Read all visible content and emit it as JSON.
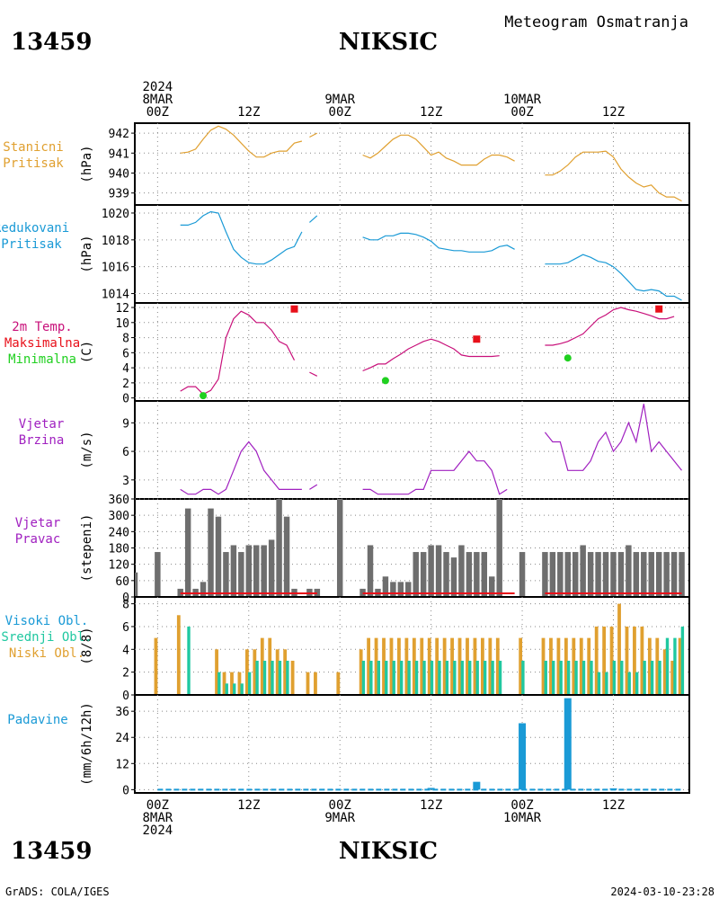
{
  "header": {
    "station_id": "13459",
    "station_name": "NIKSIC",
    "title": "Meteogram Osmatranja"
  },
  "footer": {
    "station_id": "13459",
    "station_name": "NIKSIC",
    "credit": "GrADS: COLA/IGES",
    "timestamp": "2024-03-10-23:28"
  },
  "time_axis": {
    "top": [
      {
        "hour": 0,
        "lines": [
          "2024",
          "8MAR",
          "00Z"
        ]
      },
      {
        "hour": 12,
        "lines": [
          "12Z"
        ]
      },
      {
        "hour": 24,
        "lines": [
          "9MAR",
          "00Z"
        ]
      },
      {
        "hour": 36,
        "lines": [
          "12Z"
        ]
      },
      {
        "hour": 48,
        "lines": [
          "10MAR",
          "00Z"
        ]
      },
      {
        "hour": 60,
        "lines": [
          "12Z"
        ]
      }
    ],
    "bottom": [
      {
        "hour": 0,
        "lines": [
          "00Z",
          "8MAR",
          "2024"
        ]
      },
      {
        "hour": 12,
        "lines": [
          "12Z"
        ]
      },
      {
        "hour": 24,
        "lines": [
          "00Z",
          "9MAR"
        ]
      },
      {
        "hour": 36,
        "lines": [
          "12Z"
        ]
      },
      {
        "hour": 48,
        "lines": [
          "00Z",
          "10MAR"
        ]
      },
      {
        "hour": 60,
        "lines": [
          "12Z"
        ]
      }
    ],
    "range_hours": [
      -3,
      70
    ]
  },
  "colors": {
    "pressure": "#e0a030",
    "reduced_pressure": "#1a9ad6",
    "temperature": "#c8107a",
    "tmax": "#e8101a",
    "tmin": "#20d020",
    "wind": "#a020c0",
    "direction": "#6e6e6e",
    "clouds_high": "#1a9ad6",
    "clouds_mid": "#20c8a0",
    "clouds_low": "#e0a030",
    "precip": "#1a9ad6"
  },
  "chart_data": [
    {
      "type": "line",
      "panel": "station_pressure",
      "labels": [
        "Stanicni",
        "Pritisak"
      ],
      "ylabel": "(hPa)",
      "ylim": [
        938.4,
        942.5
      ],
      "yticks": [
        939,
        940,
        941,
        942
      ],
      "series": [
        {
          "x": [
            3,
            4,
            5,
            6,
            7,
            8,
            9,
            10,
            11,
            12,
            13,
            14,
            15,
            16,
            17,
            18,
            19,
            null,
            20,
            21,
            null,
            27,
            28,
            29,
            30,
            31,
            32,
            33,
            34,
            35,
            36,
            37,
            38,
            39,
            40,
            41,
            42,
            43,
            44,
            45,
            46,
            47,
            null,
            51,
            52,
            53,
            54,
            55,
            56,
            57,
            58,
            59,
            60,
            61,
            62,
            63,
            64,
            65,
            66,
            67,
            68,
            69
          ],
          "y": [
            941.0,
            941.05,
            941.2,
            941.7,
            942.15,
            942.35,
            942.2,
            941.9,
            941.5,
            941.1,
            940.8,
            940.8,
            941.0,
            941.1,
            941.1,
            941.5,
            941.6,
            null,
            941.8,
            942.0,
            null,
            940.9,
            940.75,
            941.0,
            941.35,
            941.7,
            941.9,
            941.9,
            941.7,
            941.3,
            940.9,
            941.05,
            940.75,
            940.6,
            940.4,
            940.4,
            940.4,
            940.7,
            940.9,
            940.9,
            940.8,
            940.6,
            null,
            939.9,
            939.9,
            940.1,
            940.4,
            940.8,
            941.05,
            941.05,
            941.05,
            941.1,
            940.8,
            940.2,
            939.8,
            939.5,
            939.3,
            939.4,
            939.0,
            938.8,
            938.8,
            938.6
          ]
        }
      ]
    },
    {
      "type": "line",
      "panel": "reduced_pressure",
      "labels": [
        "Redukovani",
        "Pritisak"
      ],
      "ylabel": "(hPa)",
      "ylim": [
        1013.3,
        1020.6
      ],
      "yticks": [
        1014,
        1016,
        1018,
        1020
      ],
      "series": [
        {
          "x": [
            3,
            4,
            5,
            6,
            7,
            8,
            9,
            10,
            11,
            12,
            13,
            14,
            15,
            16,
            17,
            18,
            19,
            null,
            20,
            21,
            null,
            27,
            28,
            29,
            30,
            31,
            32,
            33,
            34,
            35,
            36,
            37,
            38,
            39,
            40,
            41,
            42,
            43,
            44,
            45,
            46,
            47,
            null,
            51,
            52,
            53,
            54,
            55,
            56,
            57,
            58,
            59,
            60,
            61,
            62,
            63,
            64,
            65,
            66,
            67,
            68,
            69
          ],
          "y": [
            1019.1,
            1019.1,
            1019.3,
            1019.8,
            1020.1,
            1020.0,
            1018.6,
            1017.3,
            1016.7,
            1016.3,
            1016.2,
            1016.2,
            1016.5,
            1016.9,
            1017.3,
            1017.5,
            1018.6,
            null,
            1019.3,
            1019.8,
            null,
            1018.2,
            1018.0,
            1018.0,
            1018.3,
            1018.3,
            1018.5,
            1018.5,
            1018.4,
            1018.2,
            1017.9,
            1017.4,
            1017.3,
            1017.2,
            1017.2,
            1017.1,
            1017.1,
            1017.1,
            1017.2,
            1017.5,
            1017.6,
            1017.3,
            null,
            1016.2,
            1016.2,
            1016.2,
            1016.3,
            1016.6,
            1016.9,
            1016.7,
            1016.4,
            1016.3,
            1016.0,
            1015.5,
            1014.9,
            1014.3,
            1014.2,
            1014.3,
            1014.2,
            1013.8,
            1013.8,
            1013.5
          ]
        }
      ]
    },
    {
      "type": "line",
      "panel": "temperature",
      "labels": [
        "2m Temp.",
        "Maksimalna",
        "Minimalna"
      ],
      "ylabel": "(C)",
      "ylim": [
        -0.4,
        12.6
      ],
      "yticks": [
        0,
        2,
        4,
        6,
        8,
        10,
        12
      ],
      "series": [
        {
          "x": [
            3,
            4,
            5,
            6,
            7,
            8,
            9,
            10,
            11,
            12,
            13,
            14,
            15,
            16,
            17,
            18,
            19,
            null,
            20,
            21,
            null,
            27,
            28,
            29,
            30,
            31,
            32,
            33,
            34,
            35,
            36,
            37,
            38,
            39,
            40,
            41,
            42,
            43,
            44,
            45,
            46,
            47,
            null,
            51,
            52,
            53,
            54,
            55,
            56,
            57,
            58,
            59,
            60,
            61,
            62,
            63,
            64,
            65,
            66,
            67,
            68,
            69
          ],
          "y": [
            0.9,
            1.5,
            1.5,
            0.5,
            1.0,
            2.5,
            8.0,
            10.5,
            11.5,
            11.0,
            10.0,
            10.0,
            9.0,
            7.5,
            7.0,
            5.0,
            null,
            null,
            3.4,
            2.9,
            null,
            3.6,
            4.0,
            4.5,
            4.5,
            5.2,
            5.8,
            6.5,
            7.0,
            7.5,
            7.8,
            7.5,
            7.0,
            6.5,
            5.7,
            5.5,
            5.5,
            5.5,
            5.5,
            5.6,
            null,
            null,
            null,
            7.0,
            7.0,
            7.2,
            7.5,
            8.0,
            8.5,
            9.5,
            10.5,
            11.0,
            11.7,
            12.0,
            11.7,
            11.5,
            11.2,
            10.9,
            10.5,
            10.5,
            10.8,
            null
          ]
        }
      ],
      "tmax": [
        {
          "x": 18,
          "y": 11.8
        },
        {
          "x": 42,
          "y": 7.8
        },
        {
          "x": 66,
          "y": 11.8
        }
      ],
      "tmin": [
        {
          "x": 6,
          "y": 0.3
        },
        {
          "x": 30,
          "y": 2.3
        },
        {
          "x": 54,
          "y": 5.3
        }
      ]
    },
    {
      "type": "line",
      "panel": "wind_speed",
      "labels": [
        "Vjetar",
        "Brzina"
      ],
      "ylabel": "(m/s)",
      "ylim": [
        1.0,
        11.3
      ],
      "yticks": [
        3,
        6,
        9
      ],
      "series": [
        {
          "x": [
            3,
            4,
            5,
            6,
            7,
            8,
            9,
            10,
            11,
            12,
            13,
            14,
            15,
            16,
            17,
            18,
            19,
            null,
            20,
            21,
            null,
            27,
            28,
            29,
            30,
            31,
            32,
            33,
            34,
            35,
            36,
            37,
            38,
            39,
            40,
            41,
            42,
            43,
            44,
            45,
            46,
            47,
            null,
            51,
            52,
            53,
            54,
            55,
            56,
            57,
            58,
            59,
            60,
            61,
            62,
            63,
            64,
            65,
            66,
            67,
            68,
            69
          ],
          "y": [
            2,
            1.5,
            1.5,
            2,
            2,
            1.5,
            2,
            4,
            6,
            7,
            6,
            4,
            3,
            2,
            2,
            2,
            2,
            null,
            2,
            2.5,
            null,
            2,
            2,
            1.5,
            1.5,
            1.5,
            1.5,
            1.5,
            2,
            2,
            4,
            4,
            4,
            4,
            5,
            6,
            5,
            5,
            4,
            1.5,
            2,
            null,
            null,
            8,
            7,
            7,
            4,
            4,
            4,
            5,
            7,
            8,
            6,
            7,
            9,
            7,
            11,
            6,
            7,
            6,
            5,
            4
          ]
        }
      ]
    },
    {
      "type": "bar",
      "panel": "wind_direction",
      "labels": [
        "Vjetar",
        "Pravac"
      ],
      "ylabel": "(stepeni)",
      "ylim": [
        0,
        360
      ],
      "yticks": [
        0,
        60,
        120,
        180,
        240,
        300,
        360
      ],
      "x": [
        -3,
        0,
        3,
        4,
        5,
        6,
        7,
        8,
        9,
        10,
        11,
        12,
        13,
        14,
        15,
        16,
        17,
        18,
        20,
        21,
        24,
        27,
        28,
        29,
        30,
        31,
        32,
        33,
        34,
        35,
        36,
        37,
        38,
        39,
        40,
        41,
        42,
        43,
        44,
        45,
        46,
        47,
        48,
        51,
        52,
        53,
        54,
        55,
        56,
        57,
        58,
        59,
        60,
        61,
        62,
        63,
        64,
        65,
        66,
        67,
        68,
        69
      ],
      "values": [
        90,
        165,
        30,
        325,
        30,
        55,
        325,
        295,
        165,
        190,
        165,
        190,
        190,
        190,
        210,
        360,
        295,
        30,
        30,
        30,
        360,
        30,
        190,
        30,
        75,
        55,
        55,
        55,
        165,
        165,
        190,
        190,
        165,
        145,
        190,
        165,
        165,
        165,
        75,
        360,
        0,
        0,
        165,
        165,
        165,
        165,
        165,
        165,
        190,
        165,
        165,
        165,
        165,
        165,
        190,
        165,
        165,
        165,
        165,
        165,
        165,
        165
      ]
    },
    {
      "type": "bar",
      "panel": "clouds",
      "labels": [
        "Visoki Obl.",
        "Srednji Obl.",
        "Niski Obl."
      ],
      "ylabel": "(8/8)",
      "ylim": [
        0,
        8.6
      ],
      "yticks": [
        0,
        2,
        4,
        6,
        8
      ],
      "x": [
        -3,
        0,
        3,
        4,
        5,
        6,
        7,
        8,
        9,
        10,
        11,
        12,
        13,
        14,
        15,
        16,
        17,
        18,
        20,
        21,
        24,
        27,
        28,
        29,
        30,
        31,
        32,
        33,
        34,
        35,
        36,
        37,
        38,
        39,
        40,
        41,
        42,
        43,
        44,
        45,
        48,
        51,
        52,
        53,
        54,
        55,
        56,
        57,
        58,
        59,
        60,
        61,
        62,
        63,
        64,
        65,
        66,
        67,
        68,
        69
      ],
      "series": [
        {
          "name": "Niski Obl.",
          "values": [
            5,
            5,
            7,
            0,
            0,
            0,
            0,
            4,
            2,
            2,
            2,
            4,
            4,
            5,
            5,
            4,
            4,
            3,
            2,
            2,
            2,
            4,
            5,
            5,
            5,
            5,
            5,
            5,
            5,
            5,
            5,
            5,
            5,
            5,
            5,
            5,
            5,
            5,
            5,
            5,
            5,
            5,
            5,
            5,
            5,
            5,
            5,
            5,
            6,
            6,
            6,
            8,
            6,
            6,
            6,
            5,
            5,
            4,
            3,
            5
          ]
        },
        {
          "name": "Srednji Obl.",
          "values": [
            0,
            0,
            0,
            6,
            0,
            0,
            0,
            2,
            1,
            1,
            1,
            2,
            3,
            3,
            3,
            3,
            3,
            0,
            0,
            0,
            0,
            3,
            3,
            3,
            3,
            3,
            3,
            3,
            3,
            3,
            3,
            3,
            3,
            3,
            3,
            3,
            3,
            3,
            3,
            3,
            3,
            3,
            3,
            3,
            3,
            3,
            3,
            3,
            2,
            2,
            3,
            3,
            2,
            2,
            3,
            3,
            3,
            5,
            5,
            6
          ]
        }
      ]
    },
    {
      "type": "bar",
      "panel": "precipitation",
      "labels": [
        "Padavine"
      ],
      "ylabel": "(mm/6h/12h)",
      "ylim": [
        -1.5,
        43.5
      ],
      "yticks": [
        0,
        12,
        24,
        36
      ],
      "x": [
        36,
        42,
        48,
        54,
        60
      ],
      "values": [
        0.8,
        3.6,
        30.5,
        42.0,
        0.6
      ]
    }
  ]
}
